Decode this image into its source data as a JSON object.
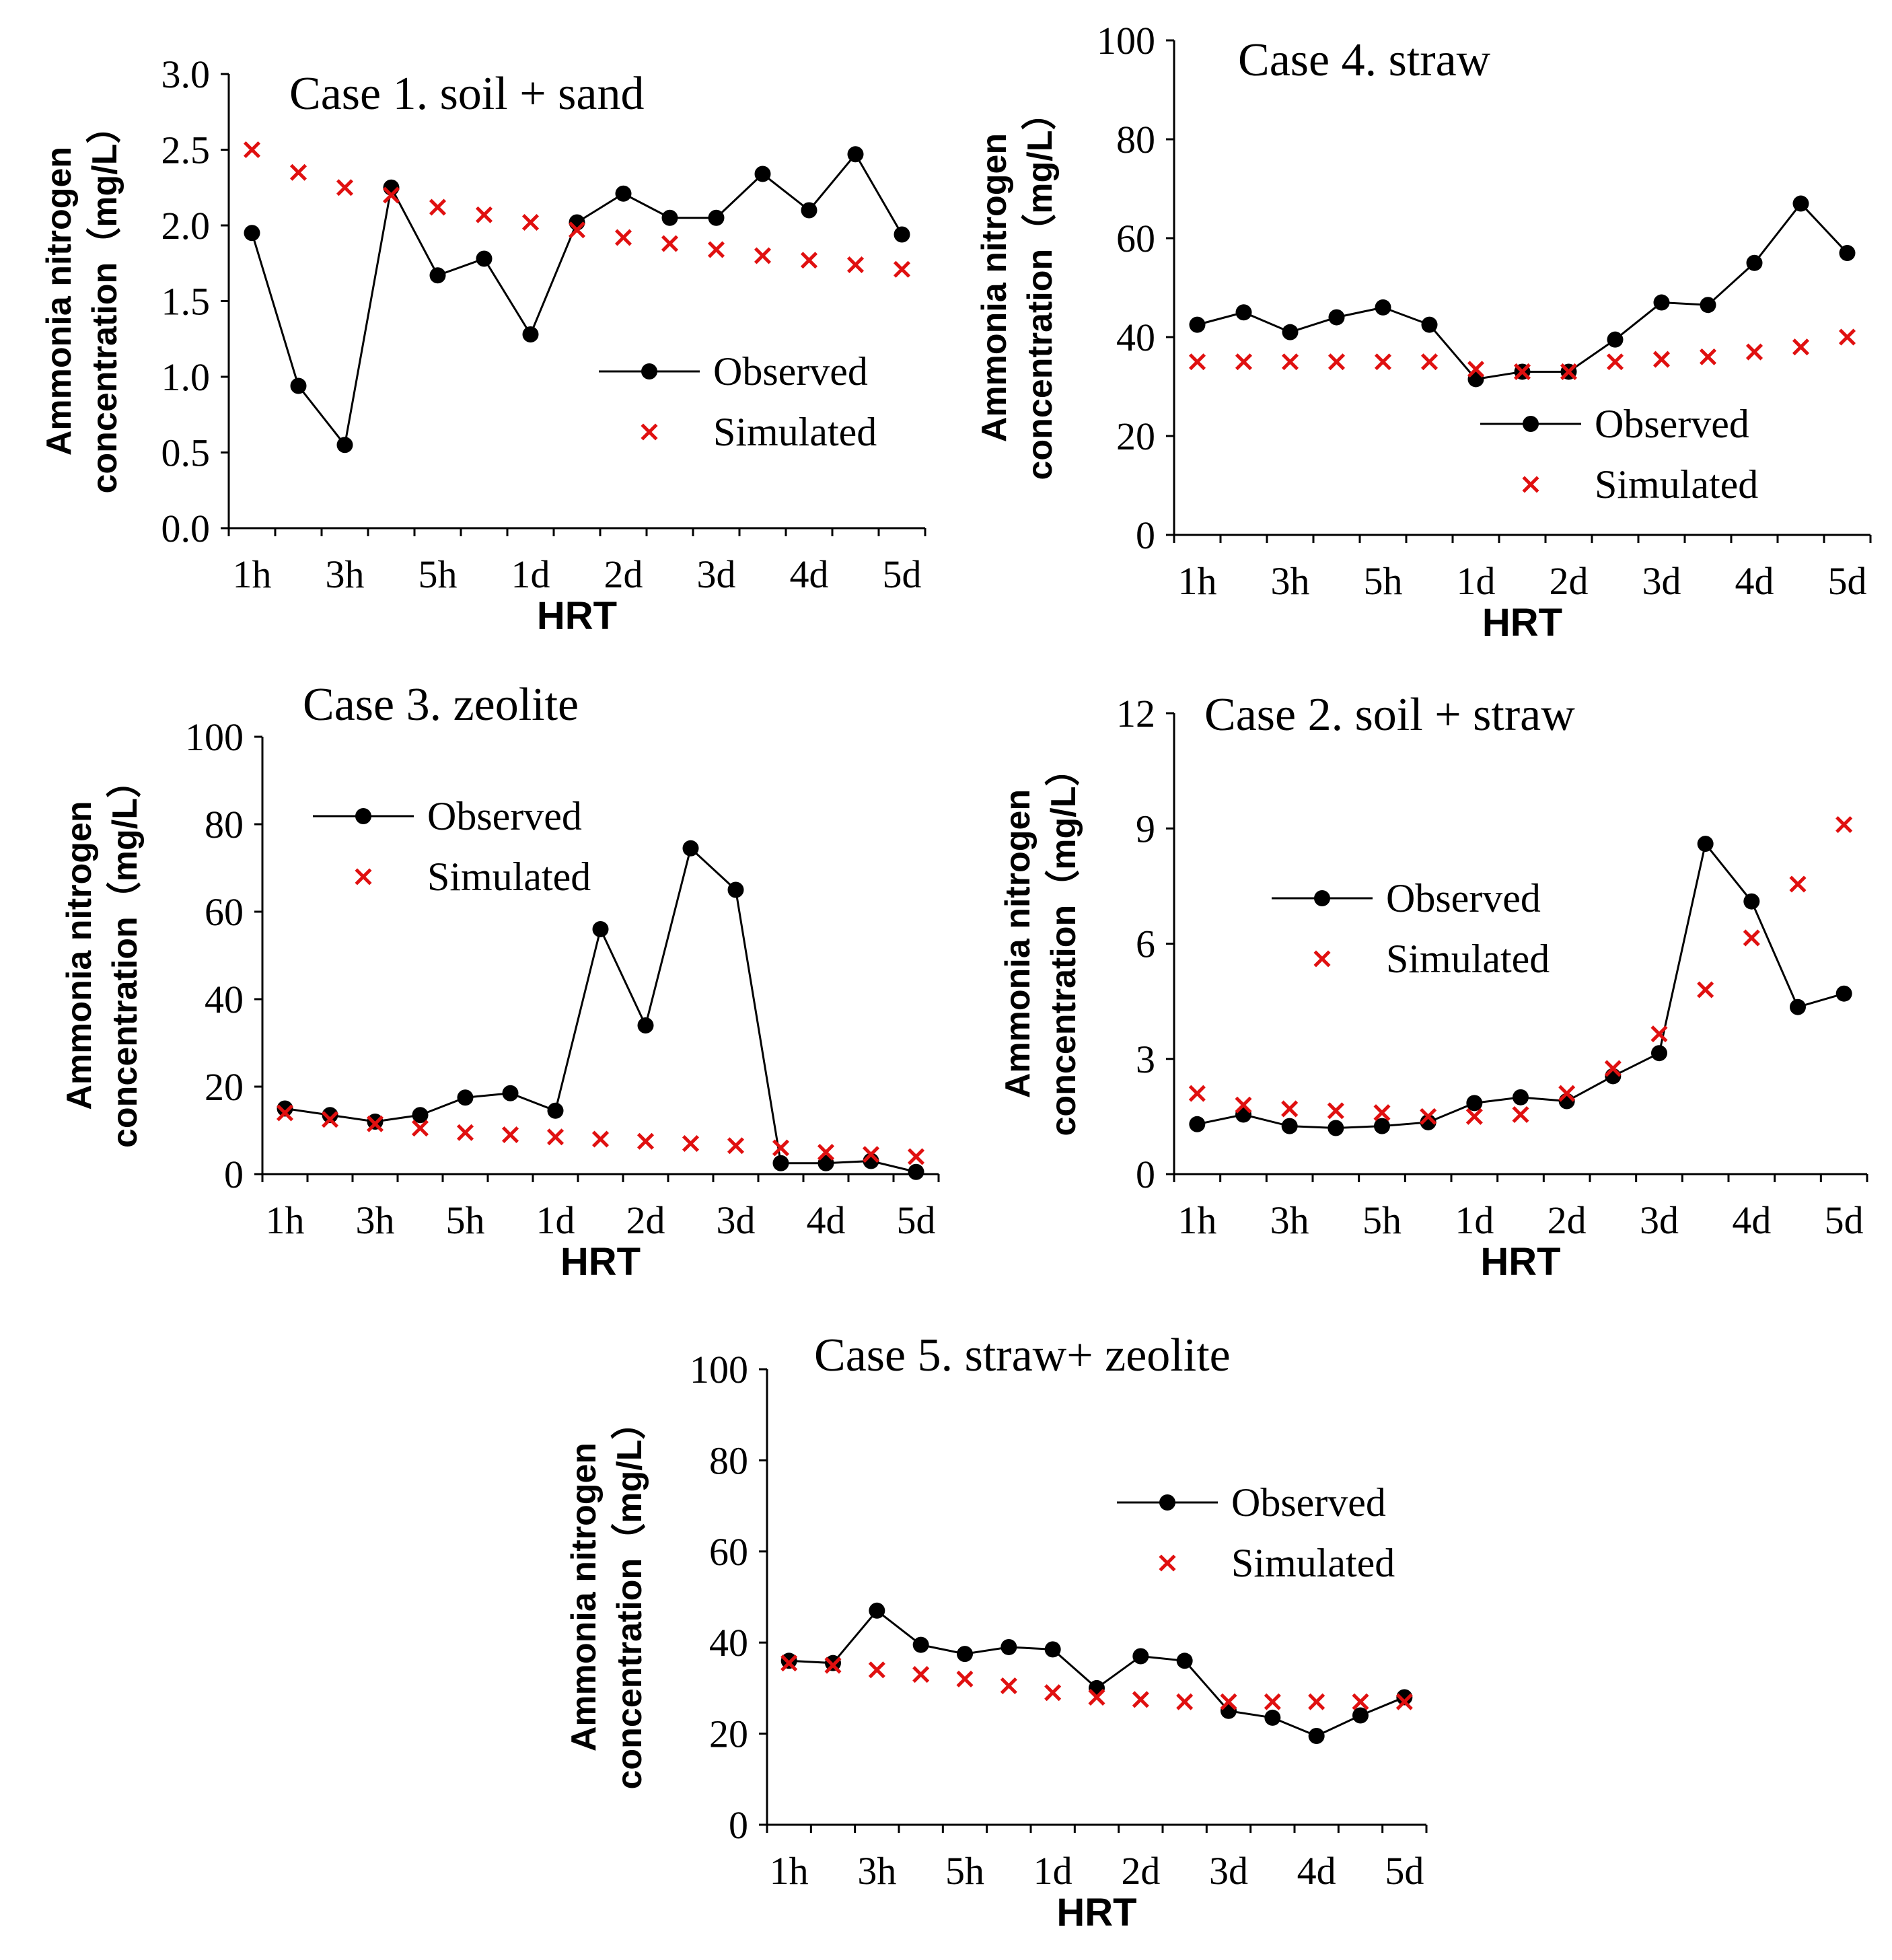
{
  "shared": {
    "categories": [
      "1h",
      "2h",
      "3h",
      "4h",
      "5h",
      "6h",
      "1d",
      "1.5d",
      "2d",
      "2.5d",
      "3d",
      "3.5d",
      "4d",
      "4.5d",
      "5d"
    ],
    "tick_labels": [
      "1h",
      "3h",
      "5h",
      "1d",
      "2d",
      "3d",
      "4d",
      "5d"
    ],
    "xlabel": "HRT",
    "ylabel_line1": "Ammonia nitrogen",
    "ylabel_line2": "concentration（mg/L）",
    "legend_observed": "Observed",
    "legend_simulated": "Simulated",
    "observed_color": "#000000",
    "simulated_color": "#e01010"
  },
  "chart_data": [
    {
      "id": "case1",
      "type": "line",
      "title": "Case 1. soil + sand",
      "xlabel": "HRT",
      "ylabel": "Ammonia nitrogen concentration（mg/L）",
      "ylim": [
        0,
        3.0
      ],
      "yticks": [
        "0.0",
        "0.5",
        "1.0",
        "1.5",
        "2.0",
        "2.5",
        "3.0"
      ],
      "legend_position": "center-right",
      "series": [
        {
          "name": "Observed",
          "values": [
            1.95,
            0.94,
            0.55,
            2.25,
            1.67,
            1.78,
            1.28,
            2.02,
            2.21,
            2.05,
            2.05,
            2.34,
            2.1,
            2.47,
            1.94
          ]
        },
        {
          "name": "Simulated",
          "values": [
            2.5,
            2.35,
            2.25,
            2.2,
            2.12,
            2.07,
            2.02,
            1.97,
            1.92,
            1.88,
            1.84,
            1.8,
            1.77,
            1.74,
            1.71
          ]
        }
      ]
    },
    {
      "id": "case4",
      "type": "line",
      "title": "Case 4. straw",
      "xlabel": "HRT",
      "ylabel": "Ammonia nitrogen concentration（mg/L）",
      "ylim": [
        0,
        100
      ],
      "yticks": [
        "0",
        "20",
        "40",
        "60",
        "80",
        "100"
      ],
      "legend_position": "bottom-right",
      "series": [
        {
          "name": "Observed",
          "values": [
            42.5,
            45,
            41,
            44,
            46,
            42.5,
            31.5,
            33,
            33,
            39.5,
            47,
            46.5,
            55,
            67,
            57
          ]
        },
        {
          "name": "Simulated",
          "values": [
            35,
            35,
            35,
            35,
            35,
            35,
            33.5,
            33,
            33,
            35,
            35.5,
            36,
            37,
            38,
            40
          ]
        }
      ]
    },
    {
      "id": "case3",
      "type": "line",
      "title": "Case 3. zeolite",
      "xlabel": "HRT",
      "ylabel": "Ammonia nitrogen concentration（mg/L）",
      "ylim": [
        0,
        100
      ],
      "yticks": [
        "0",
        "20",
        "40",
        "60",
        "80",
        "100"
      ],
      "legend_position": "top-left",
      "series": [
        {
          "name": "Observed",
          "values": [
            15,
            13.5,
            12,
            13.5,
            17.5,
            18.5,
            14.5,
            56,
            34,
            74.5,
            65,
            2.5,
            2.5,
            3,
            0.5
          ]
        },
        {
          "name": "Simulated",
          "values": [
            14,
            12.5,
            11.5,
            10.5,
            9.5,
            9,
            8.5,
            8,
            7.5,
            7,
            6.5,
            6,
            5,
            4.5,
            4
          ]
        }
      ]
    },
    {
      "id": "case2",
      "type": "line",
      "title": "Case 2. soil + straw",
      "xlabel": "HRT",
      "ylabel": "Ammonia nitrogen concentration（mg/L）",
      "ylim": [
        0,
        12
      ],
      "yticks": [
        "0",
        "3",
        "6",
        "9",
        "12"
      ],
      "legend_position": "center-left",
      "series": [
        {
          "name": "Observed",
          "values": [
            1.3,
            1.55,
            1.25,
            1.2,
            1.25,
            1.35,
            1.85,
            2.0,
            1.9,
            2.55,
            3.15,
            8.6,
            7.1,
            4.35,
            4.7
          ]
        },
        {
          "name": "Simulated",
          "values": [
            2.1,
            1.8,
            1.7,
            1.65,
            1.6,
            1.5,
            1.5,
            1.55,
            2.1,
            2.75,
            3.65,
            4.8,
            6.15,
            7.55,
            9.1
          ]
        }
      ]
    },
    {
      "id": "case5",
      "type": "line",
      "title": "Case 5. straw+ zeolite",
      "xlabel": "HRT",
      "ylabel": "Ammonia nitrogen concentration（mg/L）",
      "ylim": [
        0,
        100
      ],
      "yticks": [
        "0",
        "20",
        "40",
        "60",
        "80",
        "100"
      ],
      "legend_position": "top-right",
      "series": [
        {
          "name": "Observed",
          "values": [
            36,
            35.5,
            47,
            39.5,
            37.5,
            39,
            38.5,
            30,
            37,
            36,
            25,
            23.5,
            19.5,
            24,
            28
          ]
        },
        {
          "name": "Simulated",
          "values": [
            35.5,
            35,
            34,
            33,
            32,
            30.5,
            29,
            28,
            27.5,
            27,
            27,
            27,
            27,
            27,
            27
          ]
        }
      ]
    }
  ]
}
